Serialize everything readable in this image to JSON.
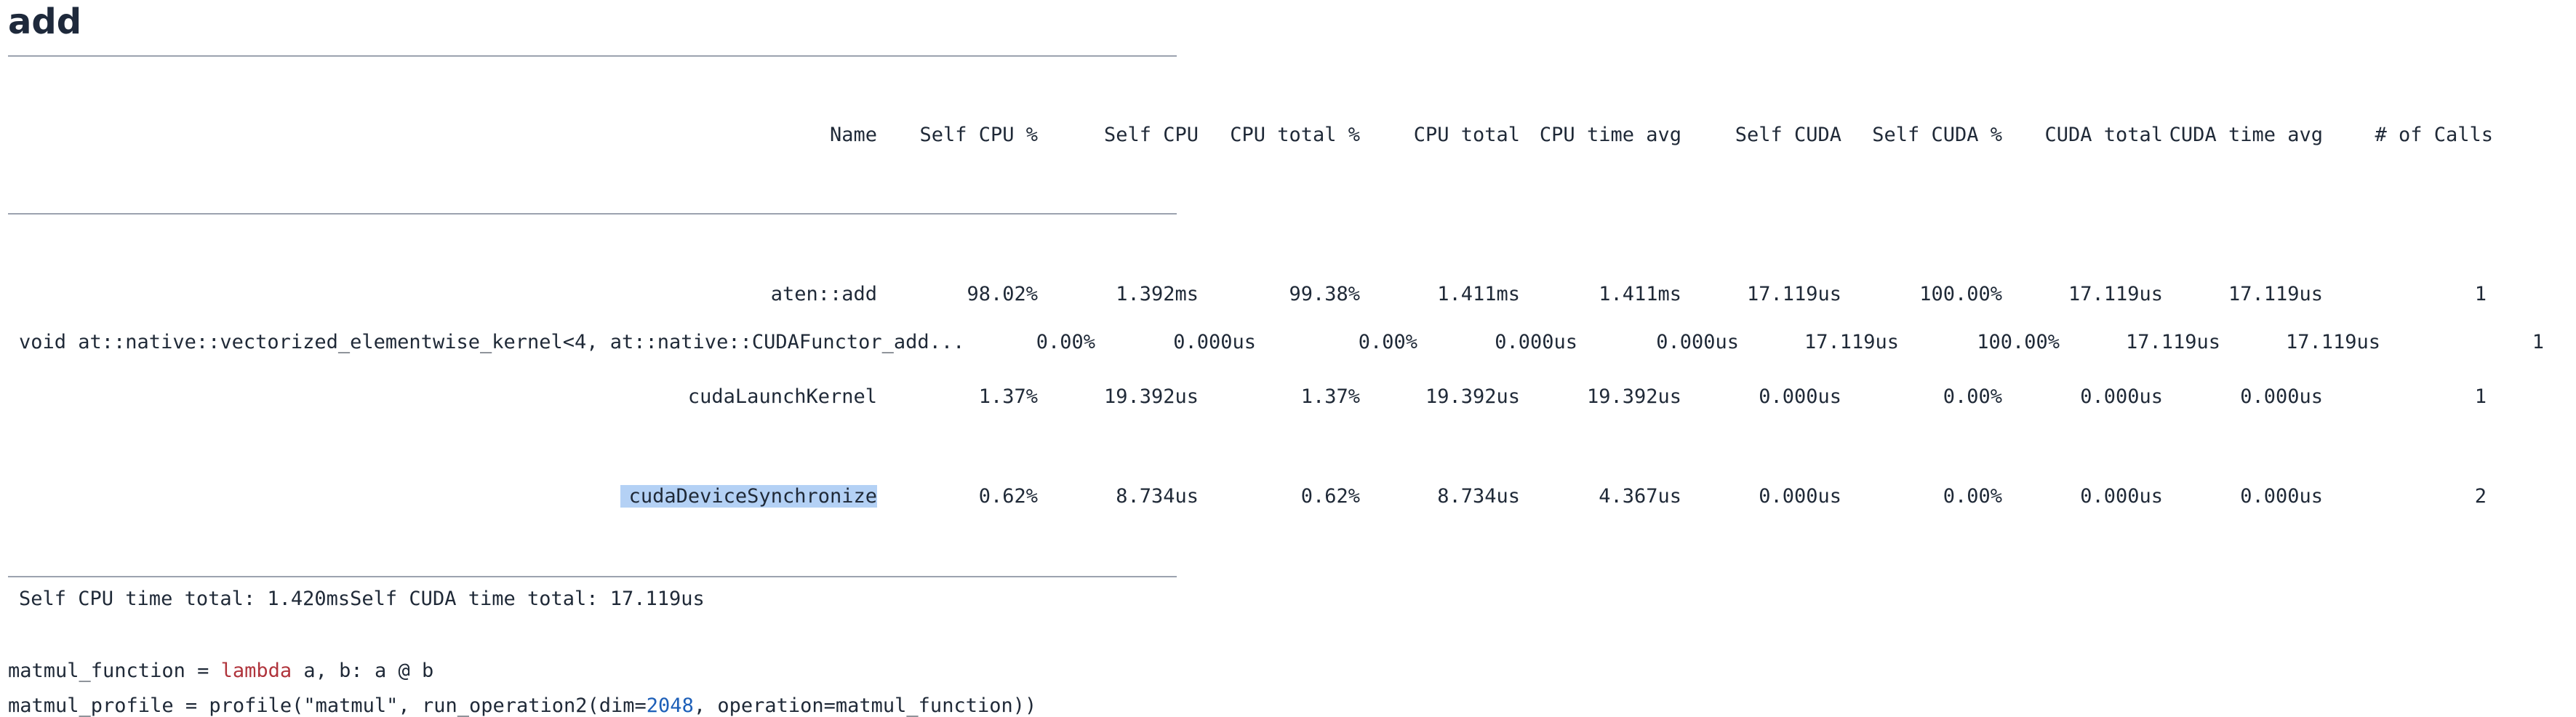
{
  "heading": "add",
  "table": {
    "columns": [
      "Name",
      "Self CPU %",
      "Self CPU",
      "CPU total %",
      "CPU total",
      "CPU time avg",
      "Self CUDA",
      "Self CUDA %",
      "CUDA total",
      "CUDA time avg",
      "# of Calls"
    ],
    "rows": [
      [
        "aten::add",
        "98.02%",
        "1.392ms",
        "99.38%",
        "1.411ms",
        "1.411ms",
        "17.119us",
        "100.00%",
        "17.119us",
        "17.119us",
        "1"
      ],
      [
        "void at::native::vectorized_elementwise_kernel<4, at::native::CUDAFunctor_add...",
        "0.00%",
        "0.000us",
        "0.00%",
        "0.000us",
        "0.000us",
        "17.119us",
        "100.00%",
        "17.119us",
        "17.119us",
        "1"
      ],
      [
        "cudaLaunchKernel",
        "1.37%",
        "19.392us",
        "1.37%",
        "19.392us",
        "19.392us",
        "0.000us",
        "0.00%",
        "0.000us",
        "0.000us",
        "1"
      ],
      [
        "cudaDeviceSynchronize",
        "0.62%",
        "8.734us",
        "0.62%",
        "8.734us",
        "4.367us",
        "0.000us",
        "0.00%",
        "0.000us",
        "0.000us",
        "2"
      ]
    ]
  },
  "footer_text": "Self CPU time total: 1.420msSelf CUDA time total: 17.119us",
  "code": {
    "line1_a": "matmul_function = ",
    "line1_kw": "lambda",
    "line1_b": " a, b: a @ b",
    "line2_a": "matmul_profile = profile(\"matmul\", run_operation2(dim=",
    "line2_num": "2048",
    "line2_b": ", operation=matmul_function))"
  }
}
